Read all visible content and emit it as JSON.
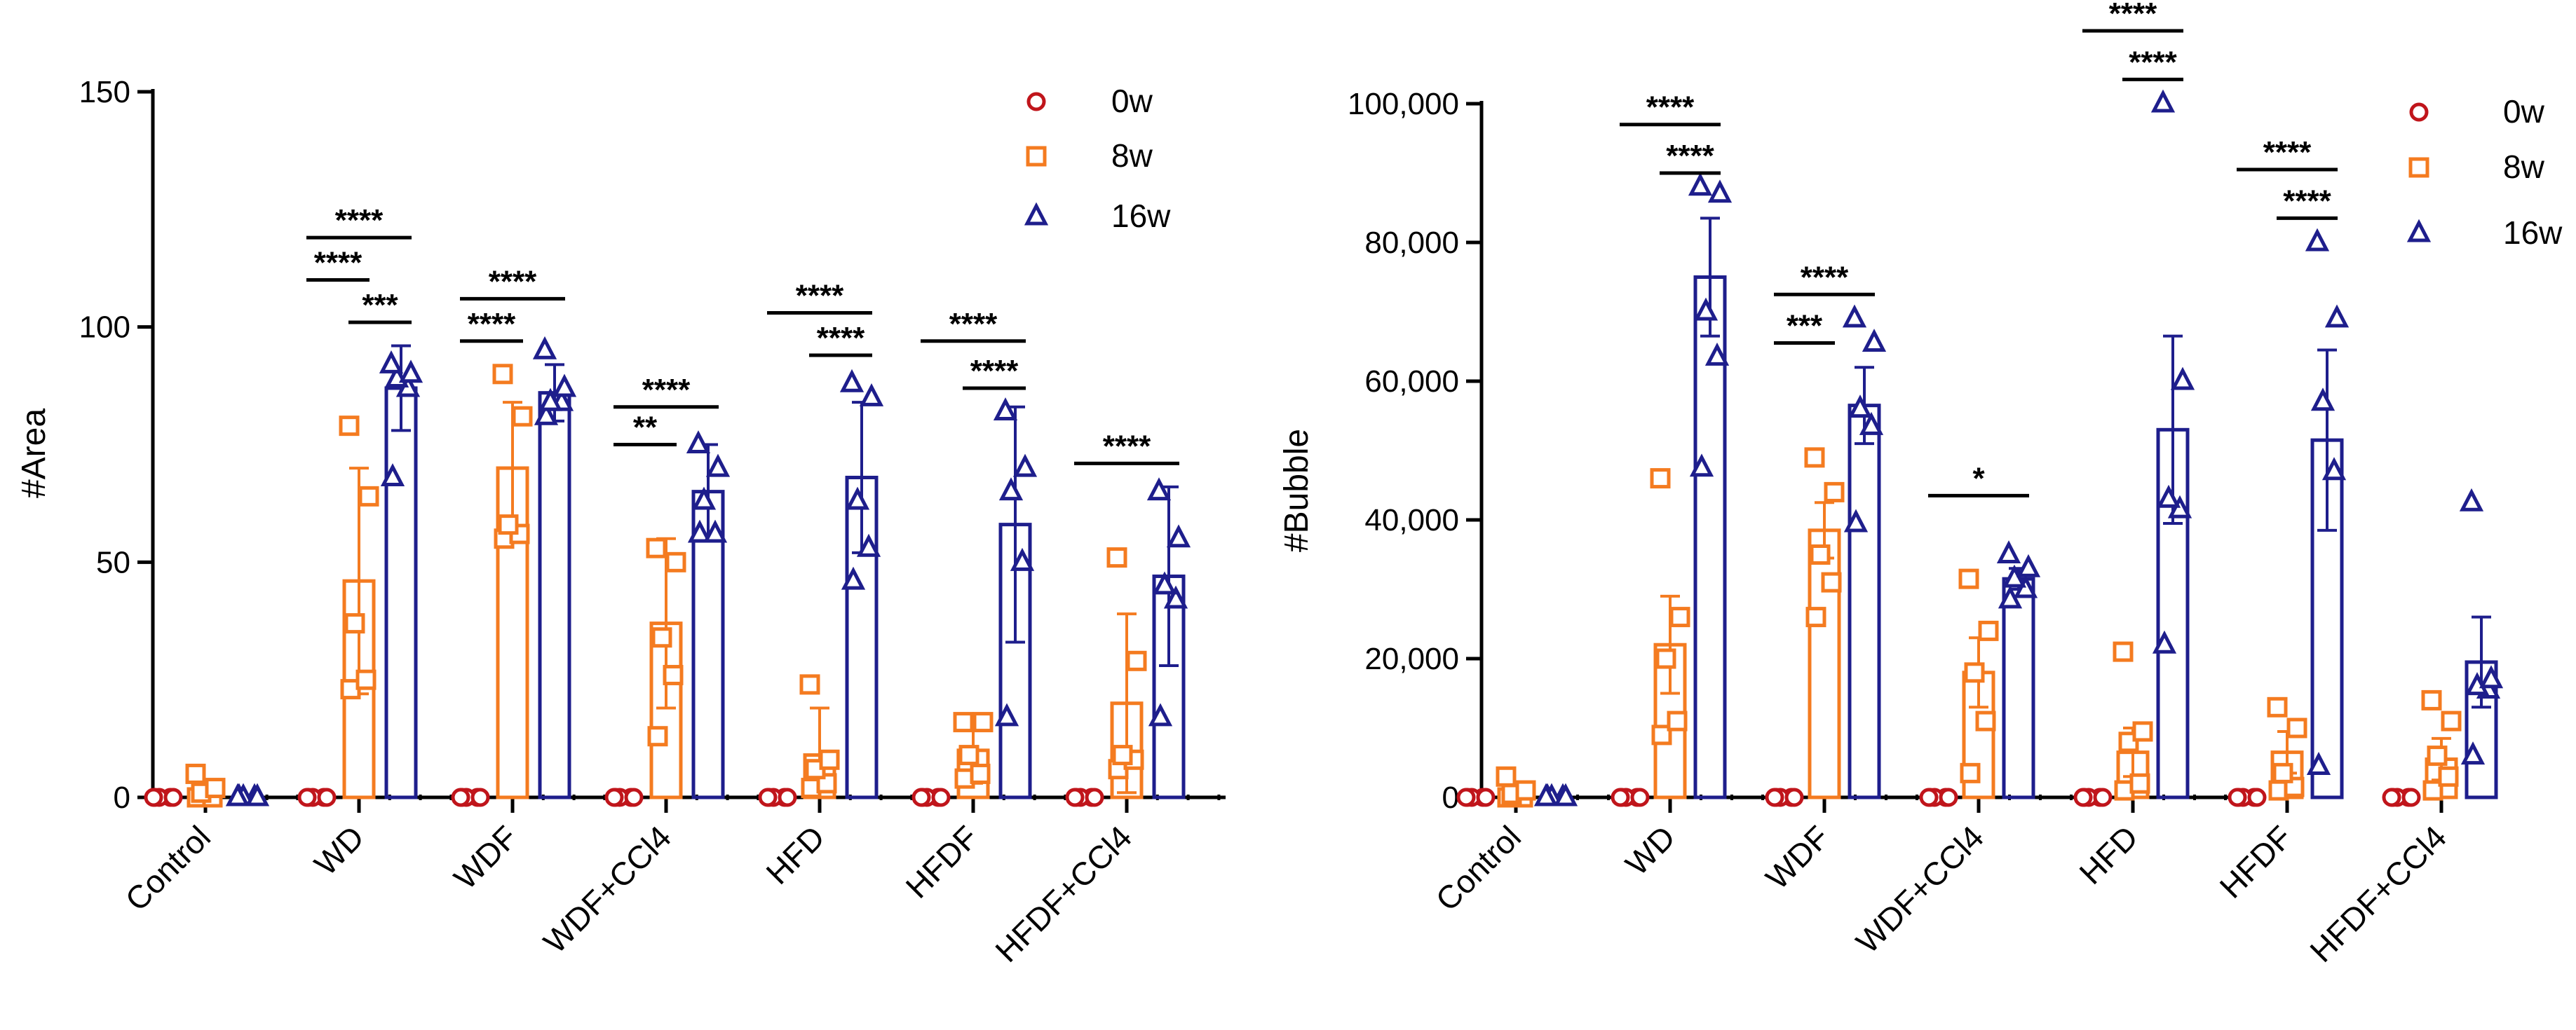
{
  "chart_data": [
    {
      "type": "bar",
      "ylabel": "#Area",
      "ylim": [
        0,
        150
      ],
      "yticks": [
        0,
        50,
        100,
        150
      ],
      "ytick_labels": [
        "0",
        "50",
        "100",
        "150"
      ],
      "categories": [
        "Control",
        "WD",
        "WDF",
        "WDF+CCl4",
        "HFD",
        "HFDF",
        "HFDF+CCl4"
      ],
      "legend_position": "top-right",
      "series": [
        {
          "name": "0w",
          "marker": "circle",
          "values": [
            0,
            0,
            0,
            0,
            0,
            0,
            0
          ],
          "errors": [
            0,
            0,
            0,
            0,
            0,
            0,
            0
          ],
          "points": [
            [
              0,
              0,
              0,
              0,
              0
            ],
            [
              0,
              0,
              0,
              0,
              0
            ],
            [
              0,
              0,
              0,
              0,
              0
            ],
            [
              0,
              0,
              0,
              0,
              0
            ],
            [
              0,
              0,
              0,
              0,
              0
            ],
            [
              0,
              0,
              0,
              0,
              0
            ],
            [
              0,
              0,
              0,
              0,
              0
            ]
          ]
        },
        {
          "name": "8w",
          "marker": "square",
          "values": [
            1.5,
            46,
            70,
            37,
            9,
            10,
            20
          ],
          "errors": [
            2,
            24,
            14,
            18,
            10,
            7,
            19
          ],
          "points": [
            [
              0,
              0,
              1,
              2,
              5
            ],
            [
              23,
              25,
              37,
              64,
              79
            ],
            [
              55,
              56,
              58,
              81,
              90
            ],
            [
              13,
              26,
              34,
              50,
              53
            ],
            [
              2,
              3,
              6,
              8,
              24
            ],
            [
              4,
              5,
              9,
              16,
              16
            ],
            [
              6,
              8,
              9,
              29,
              51
            ]
          ]
        },
        {
          "name": "16w",
          "marker": "triangle",
          "values": [
            0,
            87,
            86,
            65,
            68,
            58,
            47
          ],
          "errors": [
            0,
            9,
            6,
            10,
            16,
            25,
            19
          ],
          "points": [
            [
              0,
              0,
              0,
              0,
              0
            ],
            [
              68,
              87,
              89,
              90,
              92
            ],
            [
              81,
              84,
              84,
              87,
              95
            ],
            [
              56,
              56,
              63,
              70,
              75
            ],
            [
              46,
              53,
              63,
              85,
              88
            ],
            [
              17,
              50,
              65,
              70,
              82
            ],
            [
              17,
              42,
              45,
              55,
              65
            ]
          ]
        }
      ],
      "significance": [
        {
          "category": "WD",
          "label": "****",
          "from": "0w",
          "to": "16w",
          "y": 119
        },
        {
          "category": "WD",
          "label": "****",
          "from": "0w",
          "to": "8w",
          "y": 110
        },
        {
          "category": "WD",
          "label": "***",
          "from": "8w",
          "to": "16w",
          "y": 101
        },
        {
          "category": "WDF",
          "label": "****",
          "from": "0w",
          "to": "16w",
          "y": 106
        },
        {
          "category": "WDF",
          "label": "****",
          "from": "0w",
          "to": "8w",
          "y": 97
        },
        {
          "category": "WDF+CCl4",
          "label": "****",
          "from": "0w",
          "to": "16w",
          "y": 83
        },
        {
          "category": "WDF+CCl4",
          "label": "**",
          "from": "0w",
          "to": "8w",
          "y": 75
        },
        {
          "category": "HFD",
          "label": "****",
          "from": "0w",
          "to": "16w",
          "y": 103
        },
        {
          "category": "HFD",
          "label": "****",
          "from": "8w",
          "to": "16w",
          "y": 94
        },
        {
          "category": "HFDF",
          "label": "****",
          "from": "0w",
          "to": "16w",
          "y": 97
        },
        {
          "category": "HFDF",
          "label": "****",
          "from": "8w",
          "to": "16w",
          "y": 87
        },
        {
          "category": "HFDF+CCl4",
          "label": "****",
          "from": "0w",
          "to": "16w",
          "y": 71
        }
      ]
    },
    {
      "type": "bar",
      "ylabel": "#Bubble",
      "ylim": [
        0,
        100000
      ],
      "yticks": [
        0,
        20000,
        40000,
        60000,
        80000,
        100000
      ],
      "ytick_labels": [
        "0",
        "20,000",
        "40,000",
        "60,000",
        "80,000",
        "100,000"
      ],
      "categories": [
        "Control",
        "WD",
        "WDF",
        "WDF+CCl4",
        "HFD",
        "HFDF",
        "HFDF+CCl4"
      ],
      "legend_position": "top-right",
      "series": [
        {
          "name": "0w",
          "marker": "circle",
          "values": [
            0,
            0,
            0,
            0,
            0,
            0,
            0
          ],
          "errors": [
            0,
            0,
            0,
            0,
            0,
            0,
            0
          ],
          "points": [
            [
              0,
              0,
              0,
              0,
              0
            ],
            [
              0,
              0,
              0,
              0,
              0
            ],
            [
              0,
              0,
              0,
              0,
              0
            ],
            [
              0,
              0,
              0,
              0,
              0
            ],
            [
              0,
              0,
              0,
              0,
              0
            ],
            [
              0,
              0,
              0,
              0,
              0
            ],
            [
              0,
              0,
              0,
              0,
              0
            ]
          ]
        },
        {
          "name": "8w",
          "marker": "square",
          "values": [
            1000,
            22000,
            38500,
            18000,
            6500,
            6500,
            5500
          ],
          "errors": [
            1000,
            7000,
            4000,
            5000,
            3500,
            3000,
            3000
          ],
          "points": [
            [
              0,
              0,
              500,
              1000,
              3000
            ],
            [
              9000,
              11000,
              20000,
              26000,
              46000
            ],
            [
              26000,
              31000,
              35000,
              44000,
              49000
            ],
            [
              3500,
              11000,
              18000,
              24000,
              31500
            ],
            [
              1000,
              2000,
              8000,
              9500,
              21000
            ],
            [
              1000,
              1500,
              3500,
              10000,
              13000
            ],
            [
              1000,
              3000,
              6000,
              11000,
              14000
            ]
          ]
        },
        {
          "name": "16w",
          "marker": "triangle",
          "values": [
            0,
            75000,
            56500,
            31500,
            53000,
            51500,
            19500
          ],
          "errors": [
            0,
            8500,
            5500,
            1500,
            13500,
            13000,
            6500
          ],
          "points": [
            [
              0,
              0,
              0,
              0,
              0
            ],
            [
              47500,
              63500,
              70000,
              87000,
              88000
            ],
            [
              39500,
              53500,
              56000,
              65500,
              69000
            ],
            [
              28500,
              30000,
              31500,
              33000,
              35000
            ],
            [
              22000,
              41500,
              43000,
              60000,
              100000
            ],
            [
              4500,
              47000,
              57000,
              69000,
              80000
            ],
            [
              6000,
              15500,
              16000,
              17000,
              42500
            ]
          ]
        }
      ],
      "significance": [
        {
          "category": "WD",
          "label": "****",
          "from": "0w",
          "to": "16w",
          "y": 97000
        },
        {
          "category": "WD",
          "label": "****",
          "from": "8w",
          "to": "16w",
          "y": 90000
        },
        {
          "category": "WDF",
          "label": "****",
          "from": "0w",
          "to": "16w",
          "y": 72500
        },
        {
          "category": "WDF",
          "label": "***",
          "from": "0w",
          "to": "8w",
          "y": 65500
        },
        {
          "category": "WDF+CCl4",
          "label": "*",
          "from": "0w",
          "to": "16w",
          "y": 43500
        },
        {
          "category": "HFD",
          "label": "****",
          "from": "0w",
          "to": "16w",
          "y": 110500
        },
        {
          "category": "HFD",
          "label": "****",
          "from": "8w",
          "to": "16w",
          "y": 103500
        },
        {
          "category": "HFDF",
          "label": "****",
          "from": "0w",
          "to": "16w",
          "y": 90500
        },
        {
          "category": "HFDF",
          "label": "****",
          "from": "8w",
          "to": "16w",
          "y": 83500
        }
      ]
    }
  ]
}
